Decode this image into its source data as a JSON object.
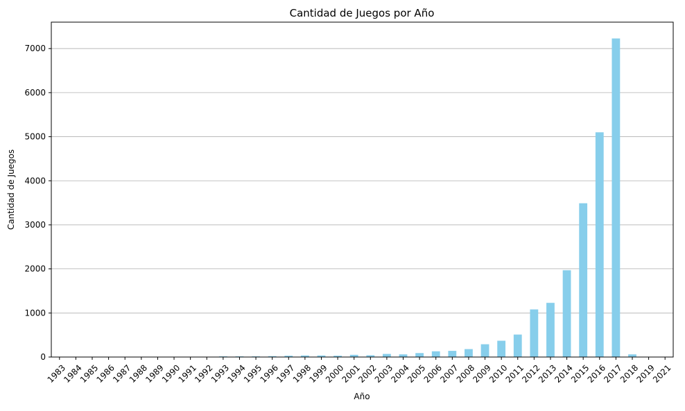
{
  "chart_data": {
    "type": "bar",
    "title": "Cantidad de Juegos por Año",
    "xlabel": "Año",
    "ylabel": "Cantidad de Juegos",
    "categories": [
      "1983",
      "1984",
      "1985",
      "1986",
      "1987",
      "1988",
      "1989",
      "1990",
      "1991",
      "1992",
      "1993",
      "1994",
      "1995",
      "1996",
      "1997",
      "1998",
      "1999",
      "2000",
      "2001",
      "2002",
      "2003",
      "2004",
      "2005",
      "2006",
      "2007",
      "2008",
      "2009",
      "2010",
      "2011",
      "2012",
      "2013",
      "2014",
      "2015",
      "2016",
      "2017",
      "2018",
      "2019",
      "2021"
    ],
    "values": [
      1,
      1,
      1,
      1,
      3,
      2,
      2,
      2,
      2,
      3,
      15,
      15,
      15,
      20,
      30,
      35,
      35,
      30,
      50,
      40,
      70,
      60,
      90,
      130,
      140,
      180,
      290,
      370,
      510,
      1080,
      1230,
      1970,
      3490,
      5100,
      7230,
      60,
      2,
      1
    ],
    "ylim": [
      0,
      7600
    ],
    "yticks": [
      0,
      1000,
      2000,
      3000,
      4000,
      5000,
      6000,
      7000
    ],
    "grid": "y-major",
    "bar_color": "#87CEEB",
    "grid_color": "#b0b0b0"
  }
}
